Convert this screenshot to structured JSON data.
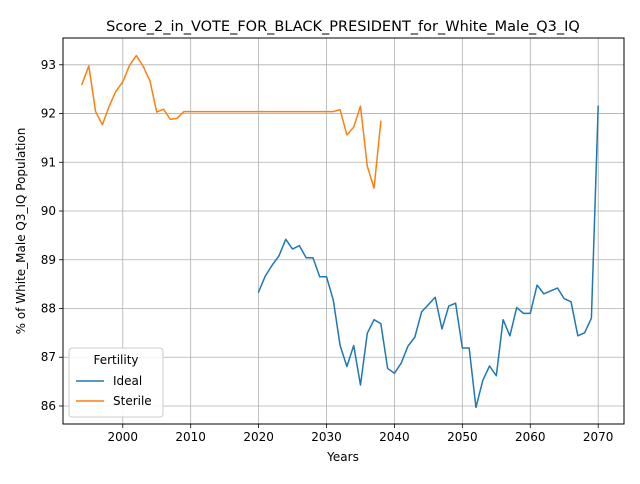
{
  "chart_data": {
    "type": "line",
    "title": "Score_2_in_VOTE_FOR_BLACK_PRESIDENT_for_White_Male_Q3_IQ",
    "xlabel": "Years",
    "ylabel": "% of White_Male Q3_IQ Population",
    "xlim": [
      1991.2,
      2073.8
    ],
    "ylim": [
      85.63,
      93.55
    ],
    "xticks": [
      2000,
      2010,
      2020,
      2030,
      2040,
      2050,
      2060,
      2070
    ],
    "yticks": [
      86,
      87,
      88,
      89,
      90,
      91,
      92,
      93
    ],
    "grid": true,
    "legend": {
      "title": "Fertility",
      "placement": "lower-left"
    },
    "series": [
      {
        "name": "Ideal",
        "color": "#1f77b4",
        "points": [
          [
            2020,
            88.34
          ],
          [
            2021,
            88.67
          ],
          [
            2022,
            88.89
          ],
          [
            2023,
            89.08
          ],
          [
            2024,
            89.42
          ],
          [
            2025,
            89.22
          ],
          [
            2026,
            89.29
          ],
          [
            2027,
            89.04
          ],
          [
            2028,
            89.04
          ],
          [
            2029,
            88.65
          ],
          [
            2030,
            88.65
          ],
          [
            2031,
            88.17
          ],
          [
            2032,
            87.24
          ],
          [
            2033,
            86.81
          ],
          [
            2034,
            87.24
          ],
          [
            2035,
            86.43
          ],
          [
            2036,
            87.49
          ],
          [
            2037,
            87.77
          ],
          [
            2038,
            87.69
          ],
          [
            2039,
            86.77
          ],
          [
            2040,
            86.67
          ],
          [
            2041,
            86.88
          ],
          [
            2042,
            87.23
          ],
          [
            2043,
            87.41
          ],
          [
            2044,
            87.93
          ],
          [
            2045,
            88.08
          ],
          [
            2046,
            88.23
          ],
          [
            2047,
            87.58
          ],
          [
            2048,
            88.05
          ],
          [
            2049,
            88.11
          ],
          [
            2050,
            87.19
          ],
          [
            2051,
            87.19
          ],
          [
            2052,
            85.97
          ],
          [
            2053,
            86.52
          ],
          [
            2054,
            86.82
          ],
          [
            2055,
            86.62
          ],
          [
            2056,
            87.77
          ],
          [
            2057,
            87.44
          ],
          [
            2058,
            88.02
          ],
          [
            2059,
            87.9
          ],
          [
            2060,
            87.9
          ],
          [
            2061,
            88.48
          ],
          [
            2062,
            88.3
          ],
          [
            2063,
            88.36
          ],
          [
            2064,
            88.42
          ],
          [
            2065,
            88.2
          ],
          [
            2066,
            88.14
          ],
          [
            2067,
            87.44
          ],
          [
            2068,
            87.5
          ],
          [
            2069,
            87.8
          ],
          [
            2070,
            92.15
          ]
        ]
      },
      {
        "name": "Sterile",
        "color": "#ff7f0e",
        "points": [
          [
            1994,
            92.6
          ],
          [
            1995,
            92.98
          ],
          [
            1996,
            92.04
          ],
          [
            1997,
            91.77
          ],
          [
            1998,
            92.15
          ],
          [
            1999,
            92.46
          ],
          [
            2000,
            92.65
          ],
          [
            2001,
            92.99
          ],
          [
            2002,
            93.19
          ],
          [
            2003,
            92.97
          ],
          [
            2004,
            92.67
          ],
          [
            2005,
            92.03
          ],
          [
            2006,
            92.09
          ],
          [
            2007,
            91.88
          ],
          [
            2008,
            91.9
          ],
          [
            2009,
            92.04
          ],
          [
            2010,
            92.04
          ],
          [
            2015,
            92.04
          ],
          [
            2020,
            92.04
          ],
          [
            2025,
            92.04
          ],
          [
            2030,
            92.04
          ],
          [
            2031,
            92.04
          ],
          [
            2032,
            92.08
          ],
          [
            2033,
            91.56
          ],
          [
            2034,
            91.72
          ],
          [
            2035,
            92.15
          ],
          [
            2036,
            90.92
          ],
          [
            2037,
            90.47
          ],
          [
            2038,
            91.84
          ]
        ]
      }
    ]
  }
}
